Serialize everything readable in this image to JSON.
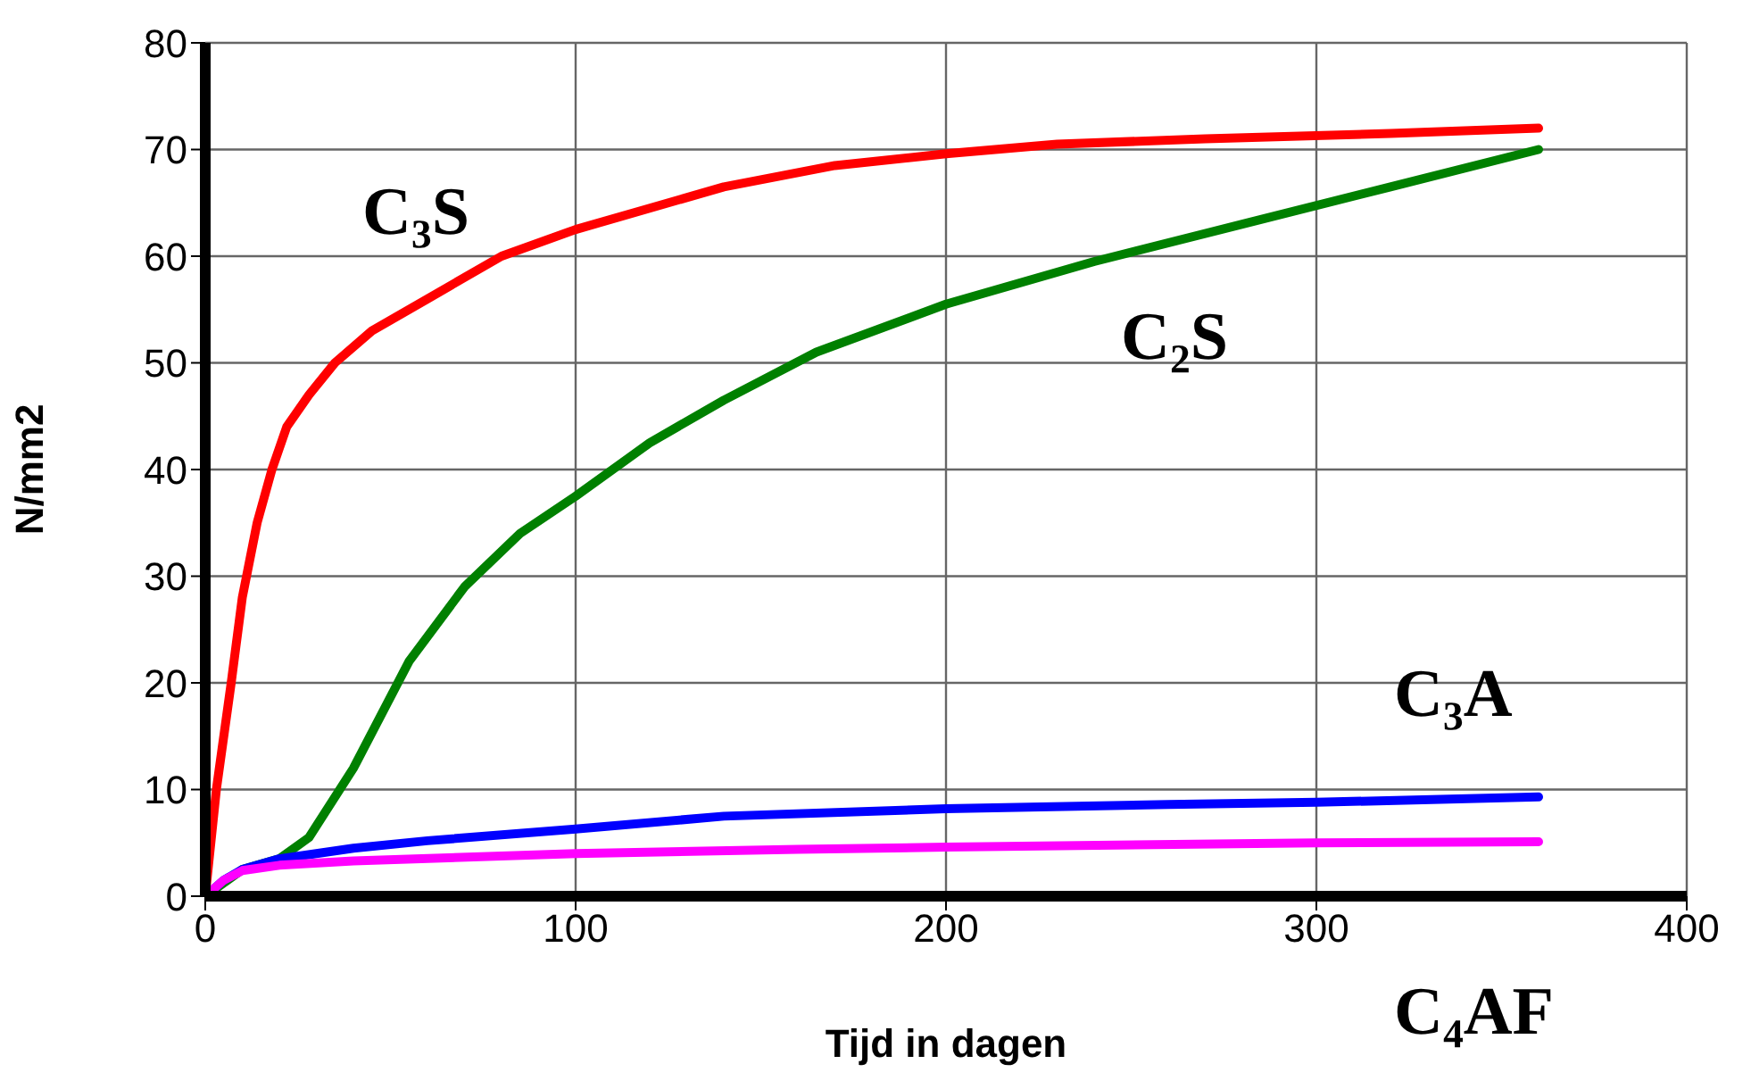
{
  "chart_data": {
    "type": "line",
    "xlabel": "Tijd in dagen",
    "ylabel": "N/mm2",
    "xlim": [
      0,
      400
    ],
    "xticks": [
      0,
      100,
      200,
      300,
      400
    ],
    "ylim": [
      0,
      80
    ],
    "yticks": [
      0,
      10,
      20,
      30,
      40,
      50,
      60,
      70,
      80
    ],
    "grid": true,
    "legend": false,
    "marker": "none",
    "line_style": "solid",
    "series": [
      {
        "name": "C₃S",
        "color": "#ff0000",
        "x": [
          0,
          3,
          7,
          10,
          14,
          18,
          22,
          28,
          35,
          45,
          60,
          80,
          100,
          120,
          140,
          170,
          200,
          230,
          270,
          320,
          360
        ],
        "values": [
          0,
          10,
          20,
          28,
          35,
          40,
          44,
          47,
          50,
          53,
          56,
          60,
          62.5,
          64.5,
          66.5,
          68.5,
          69.6,
          70.5,
          71,
          71.5,
          72
        ]
      },
      {
        "name": "C₂S",
        "color": "#008000",
        "x": [
          0,
          10,
          20,
          28,
          40,
          55,
          70,
          85,
          100,
          120,
          140,
          165,
          200,
          240,
          280,
          320,
          360
        ],
        "values": [
          0,
          2.5,
          3.5,
          5.5,
          12,
          22,
          29,
          34,
          37.5,
          42.5,
          46.5,
          51,
          55.5,
          59.5,
          63,
          66.5,
          70
        ]
      },
      {
        "name": "C₃A",
        "color": "#0000ff",
        "x": [
          0,
          5,
          10,
          20,
          40,
          60,
          100,
          140,
          200,
          260,
          300,
          360
        ],
        "values": [
          0,
          1.5,
          2.5,
          3.5,
          4.5,
          5.2,
          6.3,
          7.5,
          8.2,
          8.6,
          8.8,
          9.3
        ]
      },
      {
        "name": "C₄AF",
        "color": "#ff00ff",
        "x": [
          0,
          5,
          10,
          20,
          40,
          100,
          160,
          200,
          300,
          360
        ],
        "values": [
          0,
          1.5,
          2.4,
          2.9,
          3.3,
          4,
          4.4,
          4.6,
          5,
          5.1
        ]
      }
    ]
  }
}
